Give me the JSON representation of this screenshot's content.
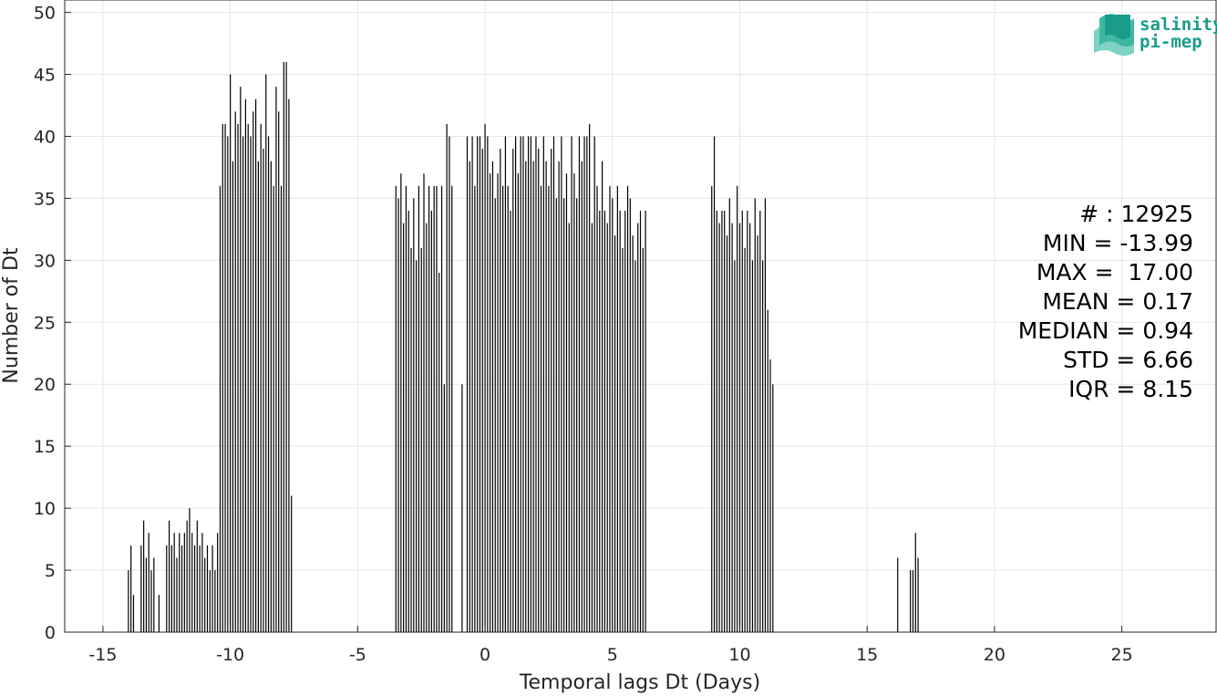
{
  "chart_data": {
    "type": "bar",
    "title": "",
    "xlabel": "Temporal lags Dt (Days)",
    "ylabel": "Number of Dt",
    "xlim": [
      -16.5,
      28.7
    ],
    "ylim": [
      0,
      51
    ],
    "xticks": [
      -15,
      -10,
      -5,
      0,
      5,
      10,
      15,
      20,
      25
    ],
    "yticks": [
      0,
      5,
      10,
      15,
      20,
      25,
      30,
      35,
      40,
      45,
      50
    ],
    "grid": true,
    "bar_color": "#000000",
    "bin_width": 0.042,
    "groups": [
      {
        "x": [
          -14.0,
          -13.9,
          -13.8,
          -13.5,
          -13.4,
          -13.3,
          -13.2,
          -13.1,
          -13.0,
          -12.8
        ],
        "values": [
          5,
          7,
          3,
          7,
          9,
          6,
          8,
          5,
          6,
          3
        ]
      },
      {
        "x": [
          -12.5,
          -12.4,
          -12.3,
          -12.2,
          -12.1,
          -12.0,
          -11.9,
          -11.8,
          -11.7,
          -11.6,
          -11.5,
          -11.4,
          -11.3,
          -11.2,
          -11.1,
          -11.0,
          -10.9,
          -10.8,
          -10.7,
          -10.6,
          -10.5
        ],
        "values": [
          7,
          9,
          7,
          8,
          6,
          8,
          7,
          8,
          9,
          10,
          8,
          7,
          9,
          7,
          8,
          6,
          7,
          5,
          7,
          5,
          8
        ]
      },
      {
        "x": [
          -10.4,
          -10.3,
          -10.2,
          -10.1,
          -10.0,
          -9.9,
          -9.8,
          -9.7,
          -9.6,
          -9.5,
          -9.4,
          -9.3,
          -9.2,
          -9.1,
          -9.0,
          -8.9,
          -8.8,
          -8.7,
          -8.6,
          -8.5,
          -8.4,
          -8.3,
          -8.2,
          -8.1,
          -8.0,
          -7.9,
          -7.8,
          -7.7,
          -7.6
        ],
        "values": [
          36,
          41,
          41,
          40,
          45,
          38,
          42,
          41,
          44,
          40,
          43,
          41,
          40,
          42,
          43,
          38,
          41,
          39,
          45,
          40,
          38,
          36,
          44,
          42,
          36,
          46,
          46,
          43,
          11
        ]
      },
      {
        "x": [
          -3.5,
          -3.4,
          -3.3,
          -3.2,
          -3.1,
          -3.0,
          -2.9,
          -2.8,
          -2.7,
          -2.6,
          -2.5,
          -2.4,
          -2.3,
          -2.2,
          -2.1,
          -2.0,
          -1.9,
          -1.8,
          -1.7,
          -1.6,
          -1.5,
          -1.4,
          -1.3
        ],
        "values": [
          36,
          35,
          37,
          33,
          36,
          34,
          31,
          35,
          30,
          36,
          31,
          37,
          33,
          36,
          34,
          36,
          36,
          29,
          36,
          20,
          41,
          40,
          36
        ]
      },
      {
        "x": [
          -0.9,
          -0.7,
          -0.6,
          -0.5,
          -0.4,
          -0.3,
          -0.2,
          -0.1,
          0.0,
          0.1,
          0.2,
          0.3,
          0.4,
          0.5,
          0.6,
          0.7,
          0.8,
          0.9,
          1.0,
          1.1,
          1.2,
          1.3,
          1.4,
          1.5,
          1.6,
          1.7,
          1.8,
          1.9,
          2.0,
          2.1,
          2.2,
          2.3,
          2.4,
          2.5,
          2.6,
          2.7,
          2.8,
          2.9,
          3.0,
          3.1,
          3.2,
          3.3,
          3.4,
          3.5,
          3.6,
          3.7,
          3.8,
          3.9,
          4.0,
          4.1,
          4.2,
          4.3,
          4.4,
          4.5,
          4.6,
          4.7,
          4.8,
          4.9,
          5.0,
          5.1,
          5.2,
          5.3,
          5.4,
          5.5,
          5.6,
          5.7,
          5.8,
          5.9,
          6.0,
          6.1,
          6.2,
          6.3
        ],
        "values": [
          20,
          40,
          38,
          40,
          36,
          40,
          40,
          39,
          41,
          40,
          37,
          38,
          35,
          37,
          39,
          36,
          40,
          36,
          34,
          39,
          40,
          37,
          40,
          40,
          38,
          40,
          40,
          38,
          40,
          39,
          36,
          40,
          38,
          36,
          39,
          40,
          35,
          38,
          40,
          35,
          37,
          33,
          40,
          37,
          35,
          40,
          38,
          40,
          40,
          41,
          33,
          40,
          36,
          34,
          38,
          34,
          33,
          36,
          35,
          32,
          36,
          34,
          31,
          34,
          36,
          35,
          32,
          30,
          33,
          34,
          31,
          34
        ]
      },
      {
        "x": [
          8.9,
          9.0,
          9.1,
          9.2,
          9.3,
          9.4,
          9.5,
          9.6,
          9.7,
          9.8,
          9.9,
          10.0,
          10.1,
          10.2,
          10.3,
          10.4,
          10.5,
          10.6,
          10.7,
          10.8,
          10.9,
          11.0,
          11.1,
          11.2,
          11.3
        ],
        "values": [
          36,
          40,
          34,
          33,
          34,
          34,
          32,
          35,
          33,
          30,
          36,
          33,
          34,
          31,
          34,
          33,
          30,
          35,
          32,
          34,
          30,
          35,
          26,
          22,
          20
        ]
      },
      {
        "x": [
          16.2,
          16.7,
          16.8,
          16.9,
          17.0
        ],
        "values": [
          6,
          5,
          5,
          8,
          6
        ]
      }
    ]
  },
  "stats": {
    "count": "# : 12925",
    "min": "MIN = -13.99",
    "max": "MAX =  17.00",
    "mean": "MEAN = 0.17",
    "median": "MEDIAN = 0.94",
    "std": "STD = 6.66",
    "iqr": "IQR = 8.15"
  },
  "logo": {
    "line1": "salinity",
    "line2": "pi-mep",
    "color": "#1a9c8a"
  }
}
